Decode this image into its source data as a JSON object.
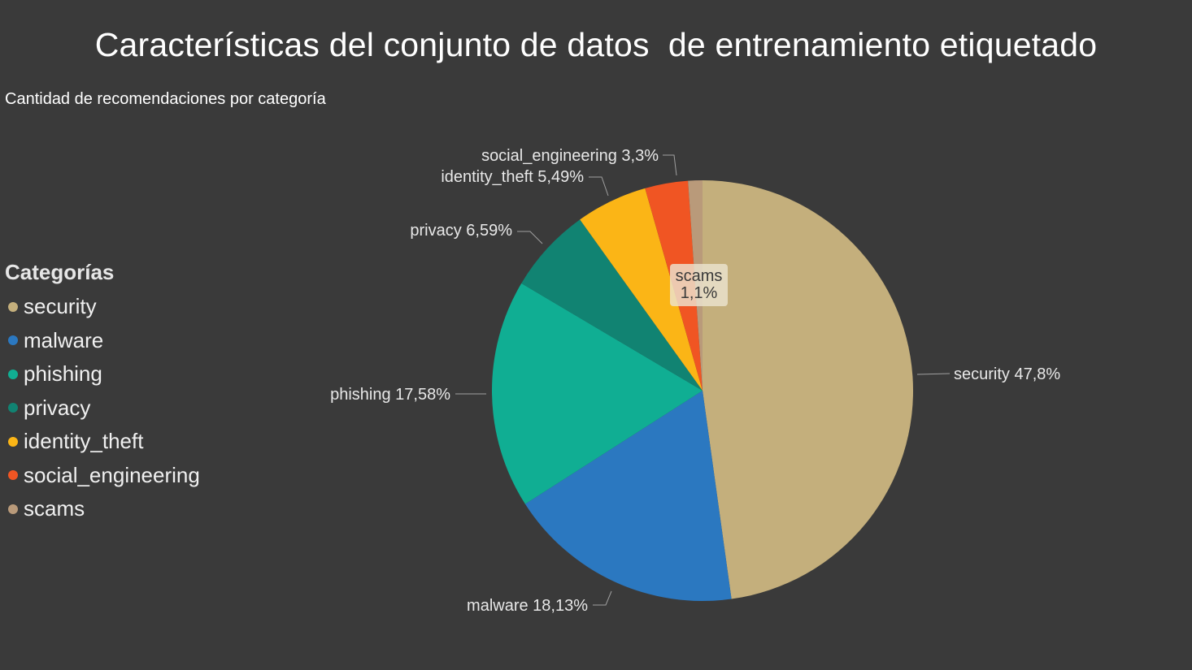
{
  "title": "Características del conjunto de datos  de entrenamiento etiquetado",
  "subtitle": "Cantidad de recomendaciones por categoría",
  "legend": {
    "title": "Categorías"
  },
  "chart_data": {
    "type": "pie",
    "legend_placement": "left",
    "categories": [
      "security",
      "malware",
      "phishing",
      "privacy",
      "identity_theft",
      "social_engineering",
      "scams"
    ],
    "values": [
      47.8,
      18.13,
      17.58,
      6.59,
      5.49,
      3.3,
      1.1
    ],
    "labels": [
      "security 47,8%",
      "malware 18,13%",
      "phishing 17,58%",
      "privacy 6,59%",
      "identity_theft 5,49%",
      "social_engineering 3,3%",
      "scams 1,1%"
    ],
    "colors": [
      "#c4af7c",
      "#2b78c0",
      "#10ae93",
      "#118372",
      "#fbb516",
      "#f05523",
      "#b99a7a"
    ]
  }
}
